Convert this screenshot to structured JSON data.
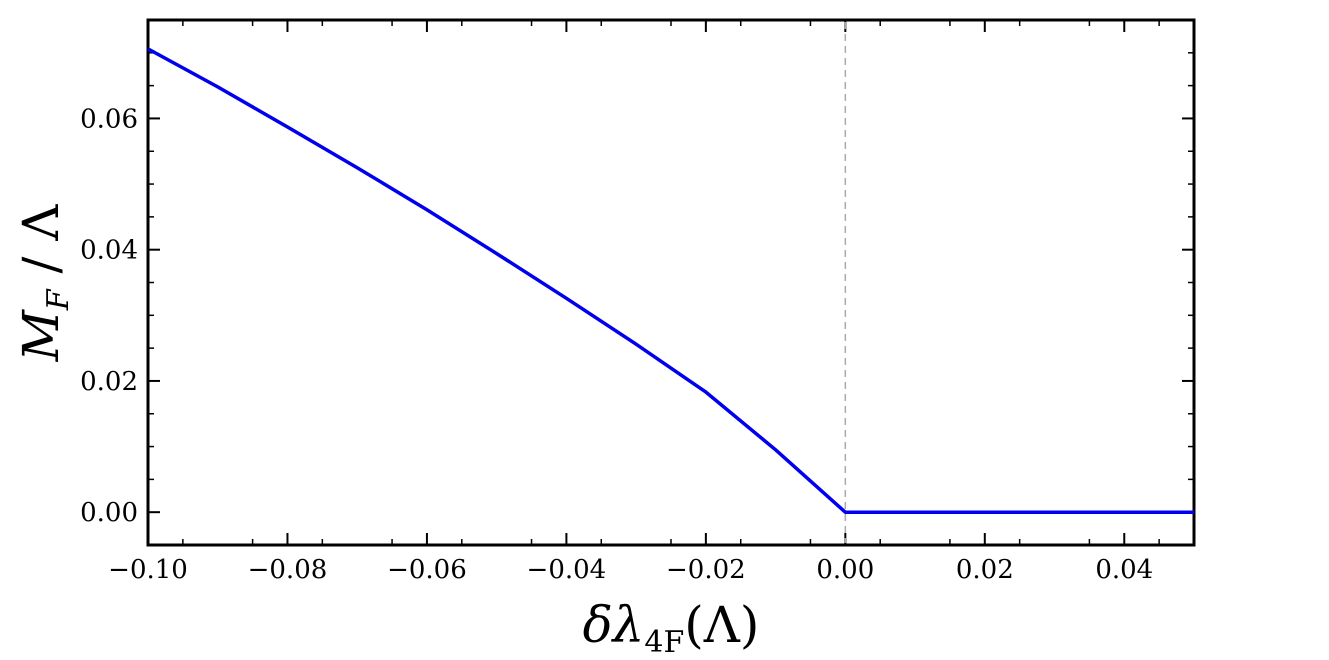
{
  "chart_data": {
    "type": "line",
    "xlabel": "δλ4F(Λ)",
    "ylabel": "MF/Λ",
    "xlim": [
      -0.1,
      0.05
    ],
    "ylim": [
      -0.005,
      0.075
    ],
    "grid": false,
    "x_ticks": [
      -0.1,
      -0.08,
      -0.06,
      -0.04,
      -0.02,
      0.0,
      0.02,
      0.04
    ],
    "x_tick_labels": [
      "−0.10",
      "−0.08",
      "−0.06",
      "−0.04",
      "−0.02",
      "0.00",
      "0.02",
      "0.04"
    ],
    "y_ticks": [
      0.0,
      0.02,
      0.04,
      0.06
    ],
    "y_tick_labels": [
      "0.00",
      "0.02",
      "0.04",
      "0.06"
    ],
    "reference_line": {
      "axis": "x",
      "value": 0.0,
      "style": "dashed",
      "color": "#aaaaaa"
    },
    "series": [
      {
        "color": "#0000ee",
        "x": [
          -0.1,
          -0.09,
          -0.08,
          -0.07,
          -0.06,
          -0.05,
          -0.04,
          -0.03,
          -0.02,
          -0.01,
          0.0,
          0.01,
          0.02,
          0.03,
          0.04,
          0.05
        ],
        "y": [
          0.0706,
          0.0648,
          0.0587,
          0.0525,
          0.0461,
          0.0394,
          0.0326,
          0.0256,
          0.0183,
          0.0095,
          0.0,
          0.0,
          0.0,
          0.0,
          0.0,
          0.0
        ]
      }
    ]
  }
}
